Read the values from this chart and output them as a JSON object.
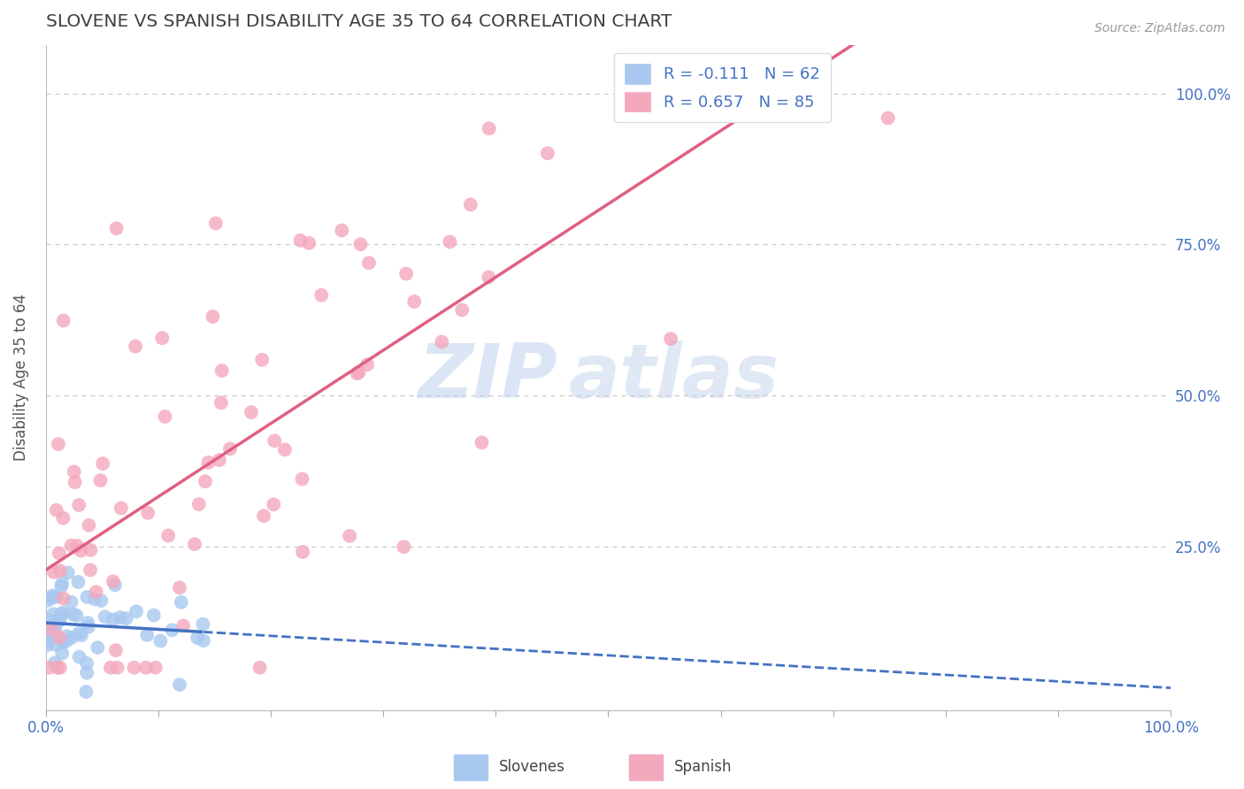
{
  "title": "SLOVENE VS SPANISH DISABILITY AGE 35 TO 64 CORRELATION CHART",
  "source_text": "Source: ZipAtlas.com",
  "ylabel": "Disability Age 35 to 64",
  "xlim": [
    0.0,
    1.0
  ],
  "ylim": [
    -0.02,
    1.08
  ],
  "slovene_R": -0.111,
  "slovene_N": 62,
  "spanish_R": 0.657,
  "spanish_N": 85,
  "slovene_color": "#a8c8f0",
  "spanish_color": "#f4a8bc",
  "slovene_line_color": "#4472c4",
  "spanish_line_color": "#e06080",
  "legend_slovene_label": "Slovenes",
  "legend_spanish_label": "Spanish",
  "watermark_zip": "ZIP",
  "watermark_atlas": "atlas",
  "background_color": "#ffffff",
  "grid_color": "#c8c8c8",
  "right_ytick_color": "#4472c4",
  "xtick_label_color": "#4472c4",
  "title_color": "#404040",
  "ytick_labels": [
    "100.0%",
    "75.0%",
    "50.0%",
    "25.0%"
  ],
  "ytick_vals": [
    1.0,
    0.75,
    0.5,
    0.25
  ],
  "xtick_labels": [
    "0.0%",
    "",
    "",
    "",
    "",
    "",
    "",
    "",
    "",
    "",
    "100.0%"
  ],
  "xtick_vals": [
    0.0,
    0.1,
    0.2,
    0.3,
    0.4,
    0.5,
    0.6,
    0.7,
    0.8,
    0.9,
    1.0
  ]
}
